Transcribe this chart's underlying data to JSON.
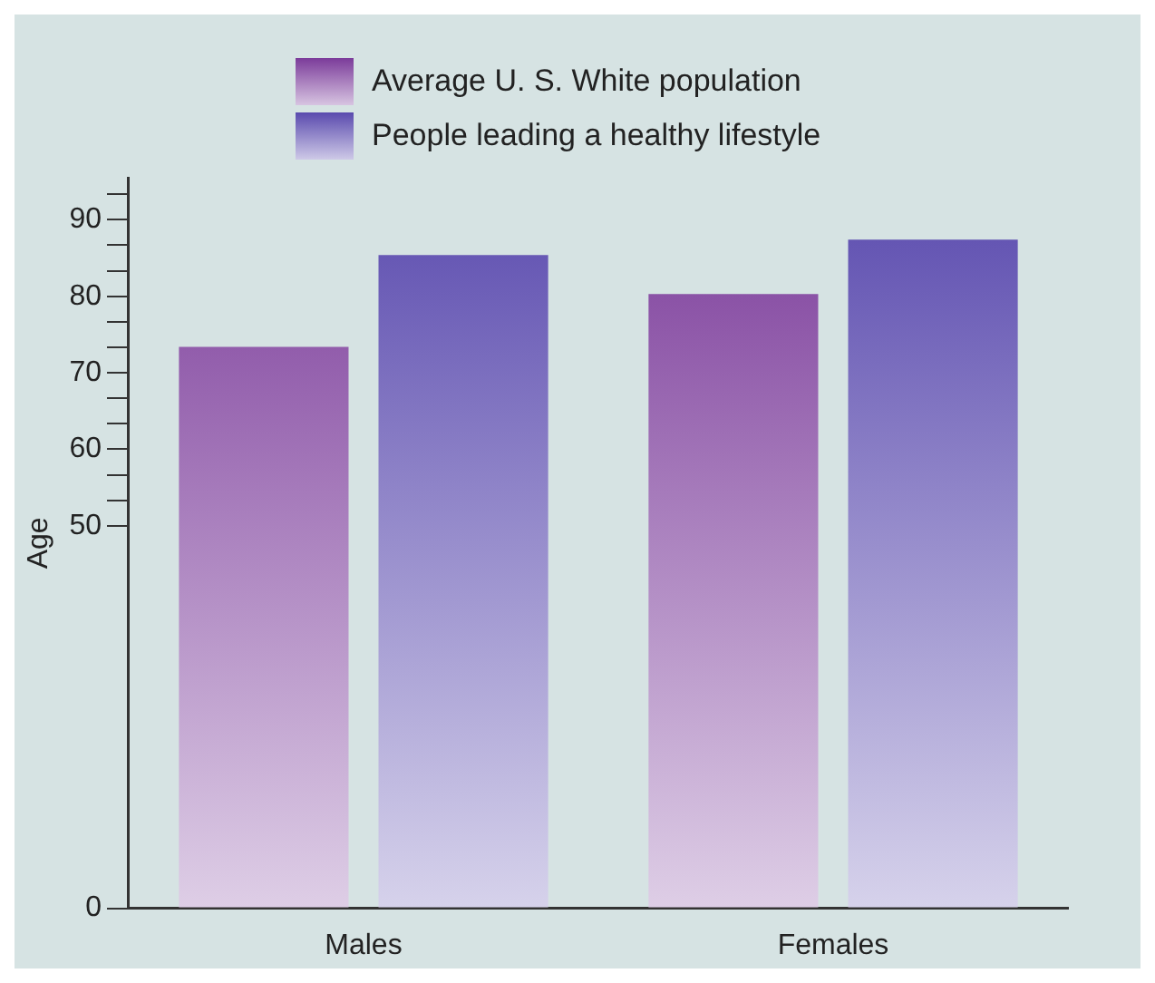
{
  "chart_data": {
    "type": "bar",
    "ylabel": "Age",
    "categories": [
      "Males",
      "Females"
    ],
    "series": [
      {
        "name": "Average U. S. White population",
        "color": "#7b3b9a",
        "values": [
          73.4,
          80.3
        ]
      },
      {
        "name": "People leading a healthy lifestyle",
        "color": "#5a4aae",
        "values": [
          85.4,
          87.4
        ]
      }
    ],
    "ylim": [
      0,
      95.5
    ],
    "yticks": [
      0,
      50,
      {
        "value": 53.33,
        "label": null
      },
      {
        "value": 56.67,
        "label": null
      },
      60,
      {
        "value": 63.33,
        "label": null
      },
      {
        "value": 66.67,
        "label": null
      },
      70,
      {
        "value": 73.33,
        "label": null
      },
      {
        "value": 76.67,
        "label": null
      },
      80,
      {
        "value": 83.33,
        "label": null
      },
      {
        "value": 86.67,
        "label": null
      },
      90,
      {
        "value": 93.33,
        "label": null
      }
    ],
    "grid": false,
    "legend": "top left"
  }
}
